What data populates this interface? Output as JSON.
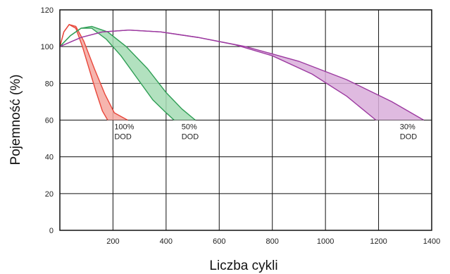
{
  "chart_data": {
    "type": "area",
    "xlabel": "Liczba cykli",
    "ylabel": "Pojemność (%)",
    "xlim": [
      0,
      1400
    ],
    "ylim": [
      0,
      120
    ],
    "x_ticks": [
      200,
      400,
      600,
      800,
      1000,
      1200,
      1400
    ],
    "y_ticks": [
      0,
      20,
      40,
      60,
      80,
      100,
      120
    ],
    "grid": true,
    "series": [
      {
        "color": "#e8463a",
        "fill": "#f5a8a0",
        "label_lines": [
          "100%",
          "DOD"
        ],
        "label_at": [
          205,
          55
        ],
        "upper": [
          [
            0,
            100
          ],
          [
            15,
            108
          ],
          [
            35,
            112
          ],
          [
            60,
            111
          ],
          [
            90,
            103
          ],
          [
            130,
            88
          ],
          [
            170,
            74
          ],
          [
            205,
            64
          ],
          [
            255,
            60
          ]
        ],
        "lower": [
          [
            0,
            100
          ],
          [
            15,
            108
          ],
          [
            35,
            112
          ],
          [
            60,
            110
          ],
          [
            85,
            100
          ],
          [
            110,
            88
          ],
          [
            135,
            76
          ],
          [
            160,
            65
          ],
          [
            180,
            60
          ]
        ]
      },
      {
        "color": "#2f9e55",
        "fill": "#a5dcb4",
        "label_lines": [
          "50%",
          "DOD"
        ],
        "label_at": [
          458,
          55
        ],
        "upper": [
          [
            0,
            100
          ],
          [
            40,
            106
          ],
          [
            80,
            110
          ],
          [
            120,
            111
          ],
          [
            180,
            108
          ],
          [
            250,
            100
          ],
          [
            330,
            88
          ],
          [
            400,
            75
          ],
          [
            460,
            66
          ],
          [
            510,
            60
          ]
        ],
        "lower": [
          [
            0,
            100
          ],
          [
            40,
            106
          ],
          [
            80,
            110
          ],
          [
            120,
            110
          ],
          [
            175,
            104
          ],
          [
            230,
            95
          ],
          [
            290,
            83
          ],
          [
            350,
            71
          ],
          [
            400,
            64
          ],
          [
            430,
            60
          ]
        ]
      },
      {
        "color": "#9c3aa0",
        "fill": "#d9aedb",
        "label_lines": [
          "30%",
          "DOD"
        ],
        "label_at": [
          1280,
          55
        ],
        "upper": [
          [
            0,
            100
          ],
          [
            80,
            105
          ],
          [
            160,
            108
          ],
          [
            260,
            109
          ],
          [
            380,
            108
          ],
          [
            520,
            105
          ],
          [
            700,
            100
          ],
          [
            900,
            92
          ],
          [
            1080,
            82
          ],
          [
            1250,
            70
          ],
          [
            1370,
            60
          ]
        ],
        "lower": [
          [
            0,
            100
          ],
          [
            80,
            105
          ],
          [
            160,
            108
          ],
          [
            260,
            109
          ],
          [
            380,
            108
          ],
          [
            520,
            105
          ],
          [
            660,
            101
          ],
          [
            800,
            95
          ],
          [
            950,
            85
          ],
          [
            1080,
            73
          ],
          [
            1190,
            60
          ]
        ]
      }
    ]
  }
}
